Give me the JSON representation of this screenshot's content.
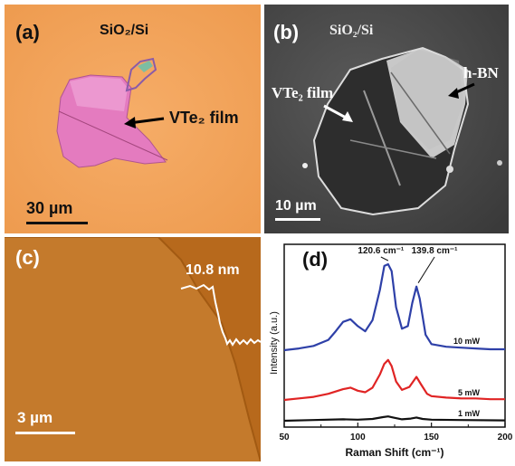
{
  "panel_a": {
    "label": "(a)",
    "substrate": "SiO₂/Si",
    "film_label": "VTe₂ film",
    "scale_bar": "30 µm",
    "colors": {
      "background": "#f2a25a",
      "flake": "#e47bbf",
      "flake_light": "#f0a5d7"
    }
  },
  "panel_b": {
    "label": "(b)",
    "substrate": "SiO₂/Si",
    "film_label": "VTe₂ film",
    "hbn_label": "h-BN",
    "scale_bar": "10 µm",
    "colors": {
      "background": "#4a4a4a",
      "flake": "#2d2d2d",
      "hbn": "#d9d9d9"
    }
  },
  "panel_c": {
    "label": "(c)",
    "height_label": "10.8 nm",
    "scale_bar": "3 µm",
    "colors": {
      "background": "#b7691c",
      "step": "#c87b2e"
    }
  },
  "panel_d": {
    "label": "(d)",
    "chart_data": {
      "type": "line",
      "xlabel": "Raman Shift (cm⁻¹)",
      "ylabel": "Intensity (a.u.)",
      "xlim": [
        50,
        200
      ],
      "xticks": [
        50,
        100,
        150,
        200
      ],
      "peak_annotations": [
        {
          "text": "120.6 cm⁻¹",
          "x": 120.6
        },
        {
          "text": "139.8 cm⁻¹",
          "x": 139.8
        }
      ],
      "series": [
        {
          "name": "10 mW",
          "color": "#2e40a8",
          "x": [
            50,
            60,
            70,
            80,
            85,
            90,
            95,
            100,
            105,
            110,
            115,
            118,
            120.6,
            123,
            126,
            130,
            134,
            137,
            139.8,
            142,
            146,
            150,
            160,
            170,
            180,
            190,
            200
          ],
          "y": [
            0,
            0.02,
            0.05,
            0.12,
            0.22,
            0.33,
            0.36,
            0.28,
            0.22,
            0.35,
            0.7,
            0.98,
            1.0,
            0.92,
            0.5,
            0.25,
            0.28,
            0.55,
            0.74,
            0.6,
            0.18,
            0.07,
            0.04,
            0.03,
            0.02,
            0.01,
            0.01
          ]
        },
        {
          "name": "5 mW",
          "color": "#e02424",
          "x": [
            50,
            60,
            70,
            80,
            90,
            95,
            100,
            105,
            110,
            115,
            118,
            120.6,
            123,
            126,
            130,
            135,
            139.8,
            143,
            147,
            150,
            160,
            170,
            180,
            190,
            200
          ],
          "y": [
            0,
            0.02,
            0.04,
            0.08,
            0.14,
            0.16,
            0.12,
            0.1,
            0.16,
            0.33,
            0.47,
            0.52,
            0.44,
            0.24,
            0.13,
            0.17,
            0.3,
            0.2,
            0.08,
            0.05,
            0.03,
            0.02,
            0.02,
            0.01,
            0.01
          ]
        },
        {
          "name": "1 mW",
          "color": "#111111",
          "x": [
            50,
            70,
            90,
            100,
            110,
            117,
            120.6,
            124,
            130,
            136,
            139.8,
            144,
            150,
            170,
            200
          ],
          "y": [
            0,
            0.02,
            0.04,
            0.03,
            0.05,
            0.1,
            0.12,
            0.09,
            0.04,
            0.06,
            0.09,
            0.05,
            0.03,
            0.02,
            0.01
          ]
        }
      ]
    }
  }
}
